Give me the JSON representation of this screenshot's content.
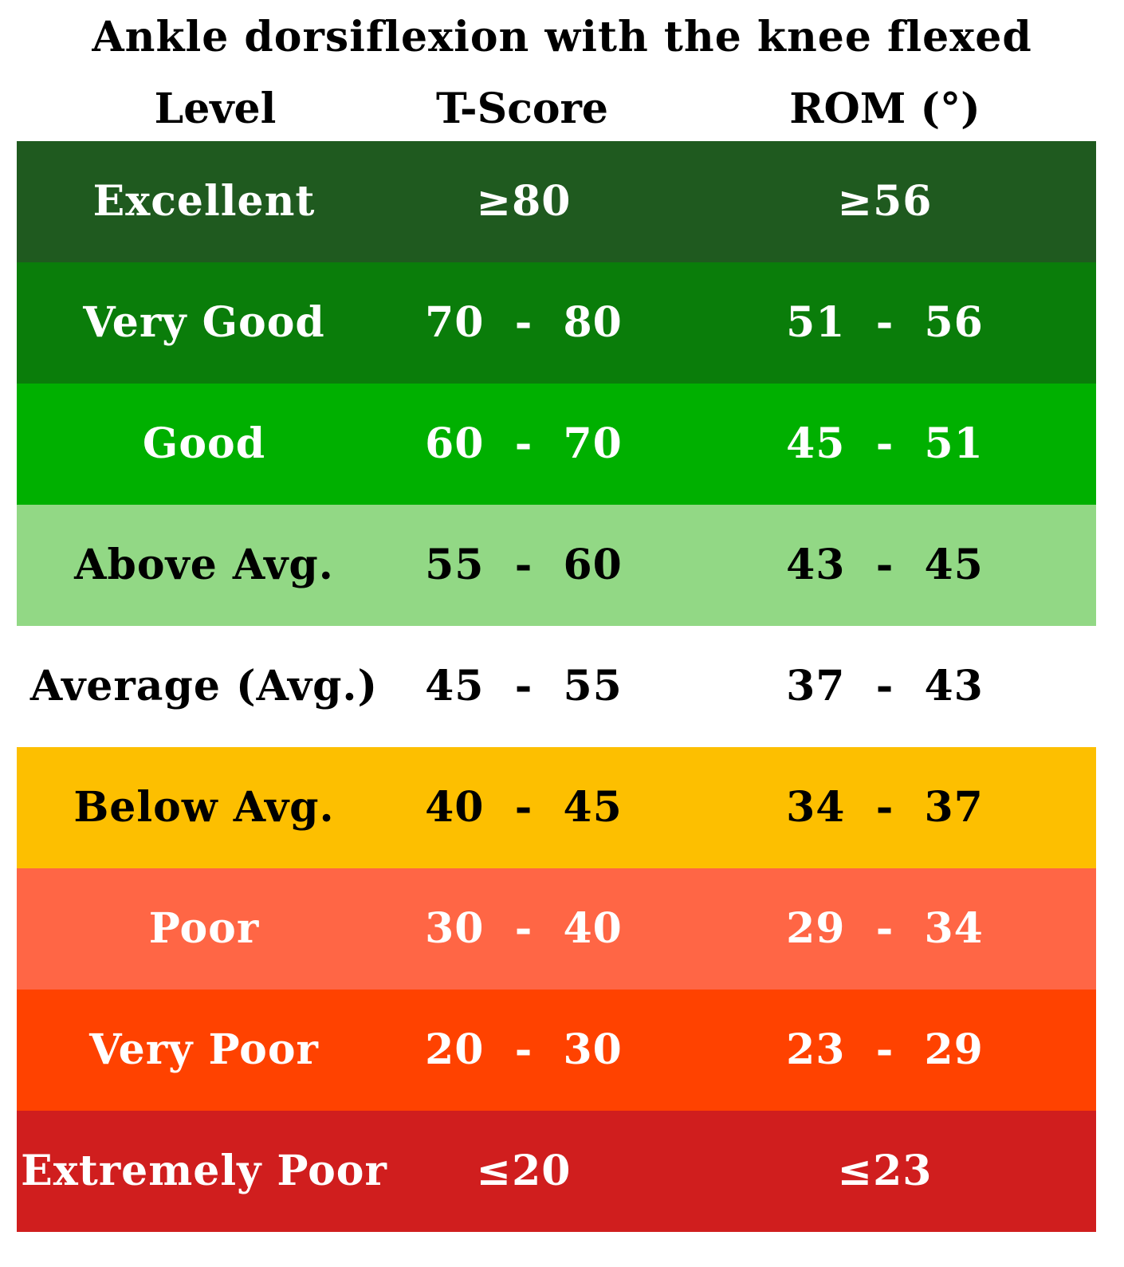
{
  "chart_data": {
    "type": "table",
    "title": "Ankle dorsiflexion with the knee flexed",
    "columns": [
      "Level",
      "T-Score",
      "ROM (°)"
    ],
    "rows": [
      {
        "level": "Excellent",
        "t_score": "≥80",
        "rom": "≥56",
        "bg": "#1f5a1f",
        "fg": "#ffffff"
      },
      {
        "level": "Very Good",
        "t_score": "70  -  80",
        "rom": "51  -  56",
        "bg": "#0a7d0a",
        "fg": "#ffffff"
      },
      {
        "level": "Good",
        "t_score": "60  -  70",
        "rom": "45  -  51",
        "bg": "#00b000",
        "fg": "#ffffff"
      },
      {
        "level": "Above Avg.",
        "t_score": "55  -  60",
        "rom": "43  -  45",
        "bg": "#92d885",
        "fg": "#000000"
      },
      {
        "level": "Average (Avg.)",
        "t_score": "45  -  55",
        "rom": "37  -  43",
        "bg": "#ffffff",
        "fg": "#000000"
      },
      {
        "level": "Below Avg.",
        "t_score": "40  -  45",
        "rom": "34  -  37",
        "bg": "#fdbf00",
        "fg": "#000000"
      },
      {
        "level": "Poor",
        "t_score": "30  -  40",
        "rom": "29  -  34",
        "bg": "#ff6645",
        "fg": "#ffffff"
      },
      {
        "level": "Very Poor",
        "t_score": "20  -  30",
        "rom": "23  -  29",
        "bg": "#ff4200",
        "fg": "#ffffff"
      },
      {
        "level": "Extremely Poor",
        "t_score": "≤20",
        "rom": "≤23",
        "bg": "#d01e1e",
        "fg": "#ffffff"
      }
    ]
  }
}
